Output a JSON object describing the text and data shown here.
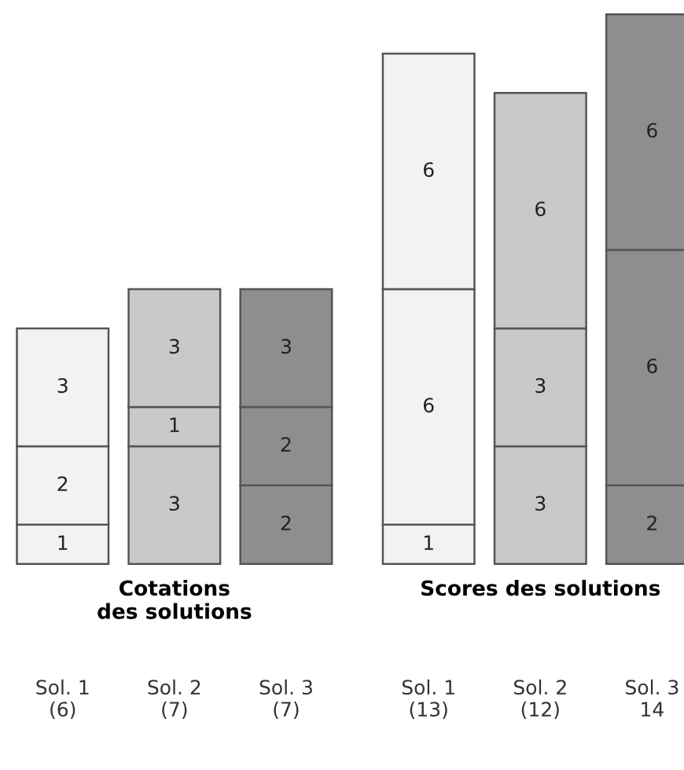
{
  "chart_data": [
    {
      "type": "bar",
      "stacked": true,
      "data_labels": true,
      "xlabel": "Cotations\ndes solutions",
      "categories": [
        "Sol. 1\n(6)",
        "Sol. 2\n(7)",
        "Sol. 3\n(7)"
      ],
      "series": [
        {
          "colors": [
            "#f2f2f2",
            "#c9c9c9",
            "#8e8e8e"
          ],
          "values": [
            1,
            3,
            2
          ]
        },
        {
          "colors": [
            "#f2f2f2",
            "#c9c9c9",
            "#8e8e8e"
          ],
          "values": [
            2,
            1,
            2
          ]
        },
        {
          "colors": [
            "#f2f2f2",
            "#c9c9c9",
            "#8e8e8e"
          ],
          "values": [
            3,
            3,
            3
          ]
        }
      ]
    },
    {
      "type": "bar",
      "stacked": true,
      "data_labels": true,
      "xlabel": "Scores des solutions",
      "categories": [
        "Sol. 1\n(13)",
        "Sol. 2\n(12)",
        "Sol. 3\n14"
      ],
      "series": [
        {
          "colors": [
            "#f2f2f2",
            "#c9c9c9",
            "#8e8e8e"
          ],
          "values": [
            1,
            3,
            2
          ]
        },
        {
          "colors": [
            "#f2f2f2",
            "#c9c9c9",
            "#8e8e8e"
          ],
          "values": [
            6,
            3,
            6
          ]
        },
        {
          "colors": [
            "#f2f2f2",
            "#c9c9c9",
            "#8e8e8e"
          ],
          "values": [
            6,
            6,
            6
          ]
        }
      ]
    }
  ]
}
